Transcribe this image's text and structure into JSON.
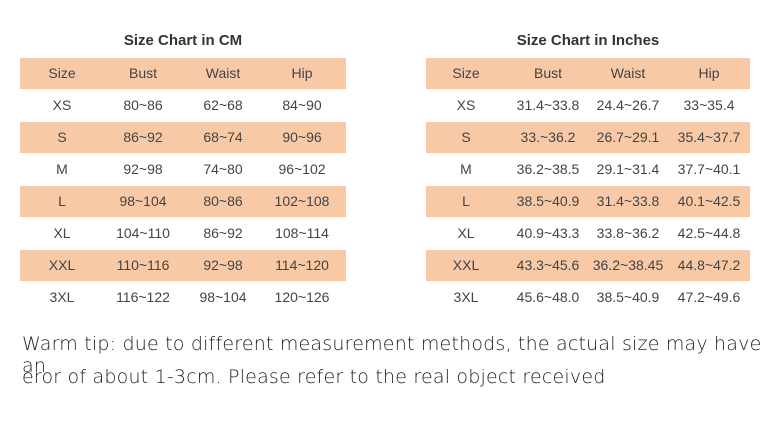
{
  "tables": [
    {
      "title": "Size Chart in CM",
      "header": [
        "Size",
        "Bust",
        "Waist",
        "Hip"
      ],
      "rows": [
        [
          "XS",
          "80~86",
          "62~68",
          "84~90"
        ],
        [
          "S",
          "86~92",
          "68~74",
          "90~96"
        ],
        [
          "M",
          "92~98",
          "74~80",
          "96~102"
        ],
        [
          "L",
          "98~104",
          "80~86",
          "102~108"
        ],
        [
          "XL",
          "104~110",
          "86~92",
          "108~114"
        ],
        [
          "XXL",
          "110~116",
          "92~98",
          "114~120"
        ],
        [
          "3XL",
          "116~122",
          "98~104",
          "120~126"
        ]
      ]
    },
    {
      "title": "Size Chart in Inches",
      "header": [
        "Size",
        "Bust",
        "Waist",
        "Hip"
      ],
      "rows": [
        [
          "XS",
          "31.4~33.8",
          "24.4~26.7",
          "33~35.4"
        ],
        [
          "S",
          "33.~36.2",
          "26.7~29.1",
          "35.4~37.7"
        ],
        [
          "M",
          "36.2~38.5",
          "29.1~31.4",
          "37.7~40.1"
        ],
        [
          "L",
          "38.5~40.9",
          "31.4~33.8",
          "40.1~42.5"
        ],
        [
          "XL",
          "40.9~43.3",
          "33.8~36.2",
          "42.5~44.8"
        ],
        [
          "XXL",
          "43.3~45.6",
          "36.2~38.45",
          "44.8~47.2"
        ],
        [
          "3XL",
          "45.6~48.0",
          "38.5~40.9",
          "47.2~49.6"
        ]
      ]
    }
  ],
  "tip": [
    "Warm tip: due to different measurement methods, the actual size may have an",
    "eror of about 1-3cm. Please refer to the real object received"
  ]
}
